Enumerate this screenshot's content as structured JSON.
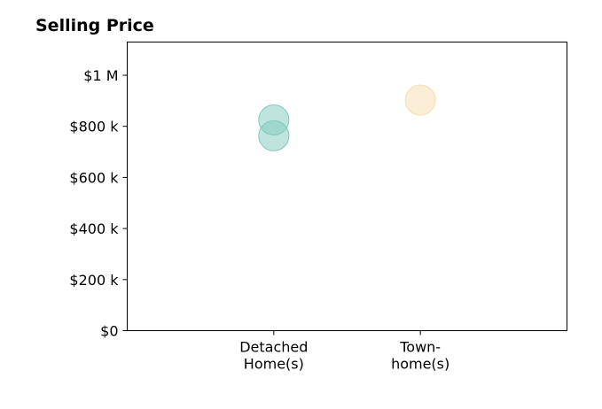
{
  "chart_data": {
    "type": "scatter",
    "title": "Selling Price",
    "xlabel": "",
    "ylabel": "",
    "categories": [
      {
        "label_lines": [
          "Detached",
          "Home(s)"
        ]
      },
      {
        "label_lines": [
          "Town-",
          "home(s)"
        ]
      }
    ],
    "xlim": [
      -1,
      2
    ],
    "ylim": [
      0,
      1130000
    ],
    "y_ticks": [
      {
        "value": 0,
        "label": "$0"
      },
      {
        "value": 200000,
        "label": "$200 k"
      },
      {
        "value": 400000,
        "label": "$400 k"
      },
      {
        "value": 600000,
        "label": "$600 k"
      },
      {
        "value": 800000,
        "label": "$800 k"
      },
      {
        "value": 1000000,
        "label": "$1 M"
      }
    ],
    "series": [
      {
        "category_index": 0,
        "color": "#7fc9bd",
        "values": [
          825000,
          763000
        ]
      },
      {
        "category_index": 1,
        "color": "#f5deb0",
        "values": [
          903000
        ]
      }
    ],
    "marker_opacity": 0.5,
    "grid": false,
    "legend": "none"
  }
}
